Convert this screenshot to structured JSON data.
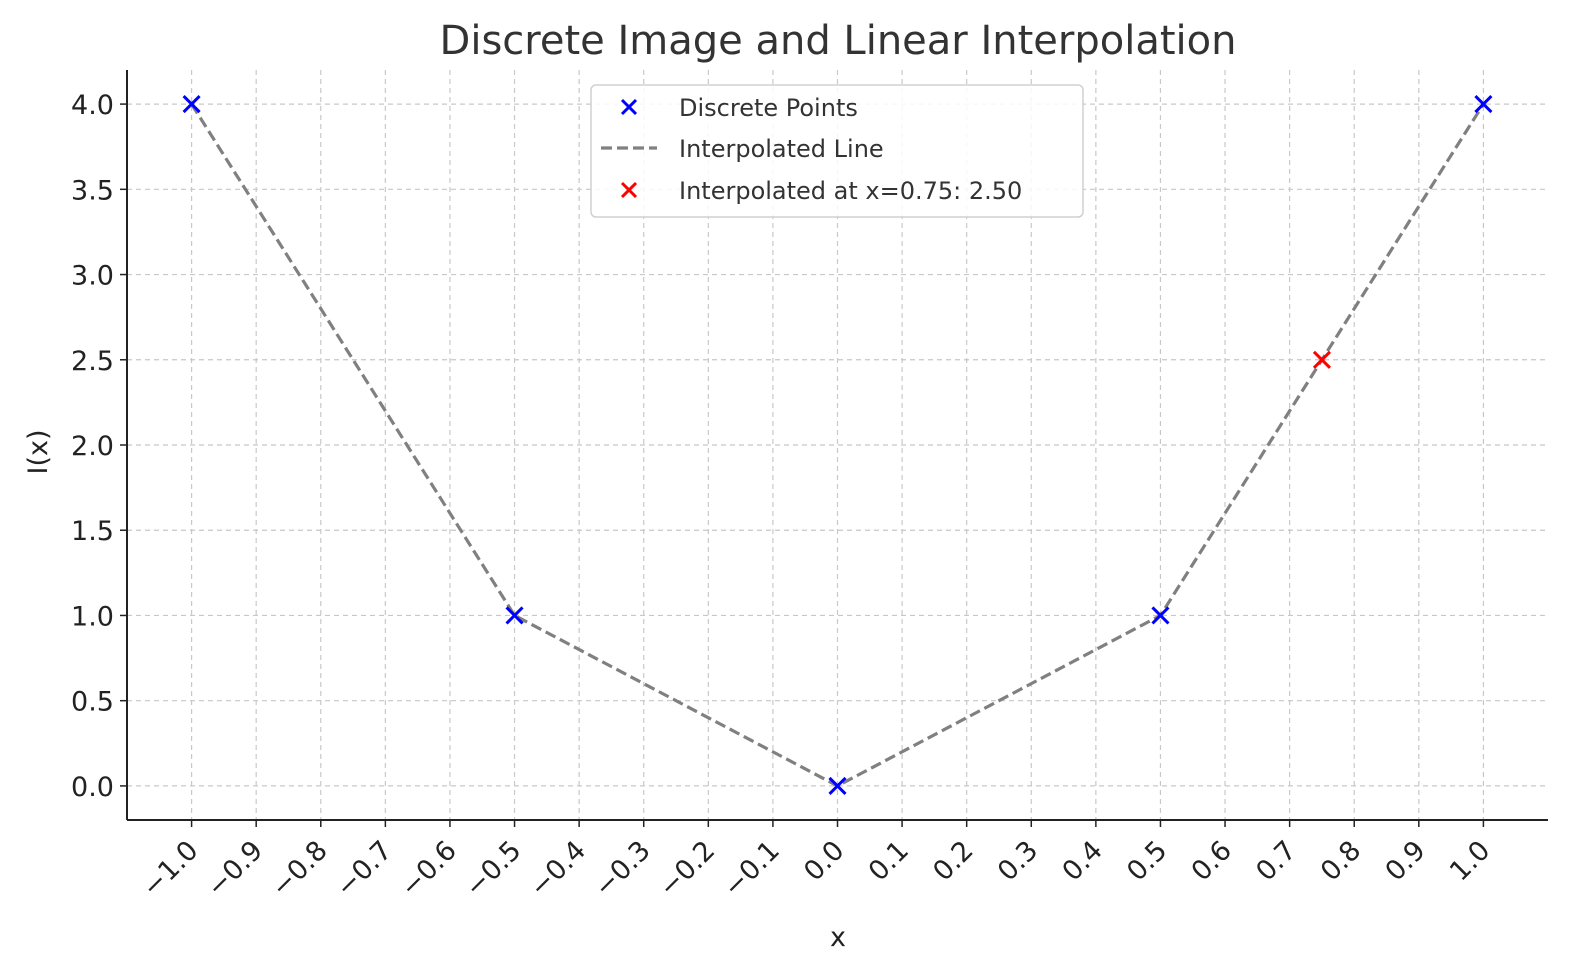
{
  "chart_data": {
    "type": "line",
    "title": "Discrete Image and Linear Interpolation",
    "xlabel": "x",
    "ylabel": "I(x)",
    "xlim": [
      -1.1,
      1.1
    ],
    "ylim": [
      -0.2,
      4.2
    ],
    "grid": true,
    "legend_position": "top-center",
    "x_ticks": [
      -1.0,
      -0.9,
      -0.8,
      -0.7,
      -0.6,
      -0.5,
      -0.4,
      -0.3,
      -0.2,
      -0.1,
      0.0,
      0.1,
      0.2,
      0.3,
      0.4,
      0.5,
      0.6,
      0.7,
      0.8,
      0.9,
      1.0
    ],
    "x_tick_labels": [
      "−1.0",
      "−0.9",
      "−0.8",
      "−0.7",
      "−0.6",
      "−0.5",
      "−0.4",
      "−0.3",
      "−0.2",
      "−0.1",
      "0.0",
      "0.1",
      "0.2",
      "0.3",
      "0.4",
      "0.5",
      "0.6",
      "0.7",
      "0.8",
      "0.9",
      "1.0"
    ],
    "y_ticks": [
      0.0,
      0.5,
      1.0,
      1.5,
      2.0,
      2.5,
      3.0,
      3.5,
      4.0
    ],
    "y_tick_labels": [
      "0.0",
      "0.5",
      "1.0",
      "1.5",
      "2.0",
      "2.5",
      "3.0",
      "3.5",
      "4.0"
    ],
    "series": [
      {
        "name": "Discrete Points",
        "kind": "scatter",
        "marker": "x",
        "color": "#0000ff",
        "x": [
          -1.0,
          -0.5,
          0.0,
          0.5,
          1.0
        ],
        "y": [
          4.0,
          1.0,
          0.0,
          1.0,
          4.0
        ]
      },
      {
        "name": "Interpolated Line",
        "kind": "line",
        "style": "dashed",
        "color": "#808080",
        "x": [
          -1.0,
          -0.5,
          0.0,
          0.5,
          1.0
        ],
        "y": [
          4.0,
          1.0,
          0.0,
          1.0,
          4.0
        ]
      },
      {
        "name": "Interpolated at x=0.75: 2.50",
        "kind": "scatter",
        "marker": "x",
        "color": "#ff0000",
        "x": [
          0.75
        ],
        "y": [
          2.5
        ]
      }
    ]
  }
}
